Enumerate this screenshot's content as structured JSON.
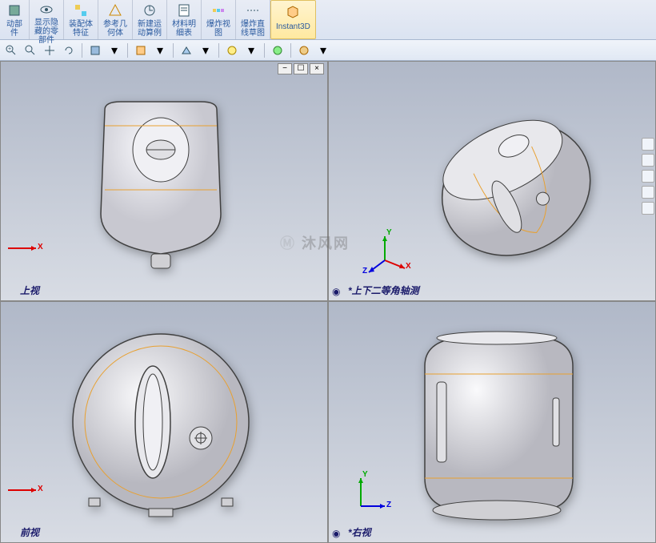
{
  "ribbon": {
    "groups": [
      {
        "label": "动部\n件",
        "icon": "cube"
      },
      {
        "label": "显示隐\n藏的零\n部件",
        "icon": "eye"
      },
      {
        "label": "装配体\n特征",
        "icon": "assembly"
      },
      {
        "label": "参考几\n何体",
        "icon": "ref-geom"
      },
      {
        "label": "新建运\n动算例",
        "icon": "motion"
      },
      {
        "label": "材料明\n细表",
        "icon": "bom"
      },
      {
        "label": "爆炸视\n图",
        "icon": "explode"
      },
      {
        "label": "爆炸直\n线草图",
        "icon": "explode-line"
      },
      {
        "label": "Instant3D",
        "icon": "instant3d",
        "active": true
      }
    ]
  },
  "toolbar2": {
    "items": [
      "zoom-in",
      "zoom-fit",
      "pan",
      "rotate",
      "sep",
      "display-style",
      "sep",
      "section",
      "view-orient",
      "sep",
      "scene",
      "sep",
      "render",
      "sep",
      "misc"
    ]
  },
  "viewports": {
    "tl": {
      "label": "上视",
      "model": "top-view"
    },
    "tr": {
      "label": "*上下二等角轴测",
      "model": "iso-view"
    },
    "bl": {
      "label": "前视",
      "model": "front-view"
    },
    "br": {
      "label": "*右视",
      "model": "right-view"
    }
  },
  "watermark": "沐风网",
  "colors": {
    "ribbon_bg": "#e0e8f4",
    "viewport_bg": "#c8ccd4",
    "axis_x": "#d00000",
    "axis_y": "#00a000",
    "axis_z": "#0000d0",
    "model_body": "#e8e8ec",
    "model_edge": "#404040",
    "model_highlight": "#e8a030"
  },
  "window_controls": [
    "−",
    "☐",
    "×"
  ]
}
